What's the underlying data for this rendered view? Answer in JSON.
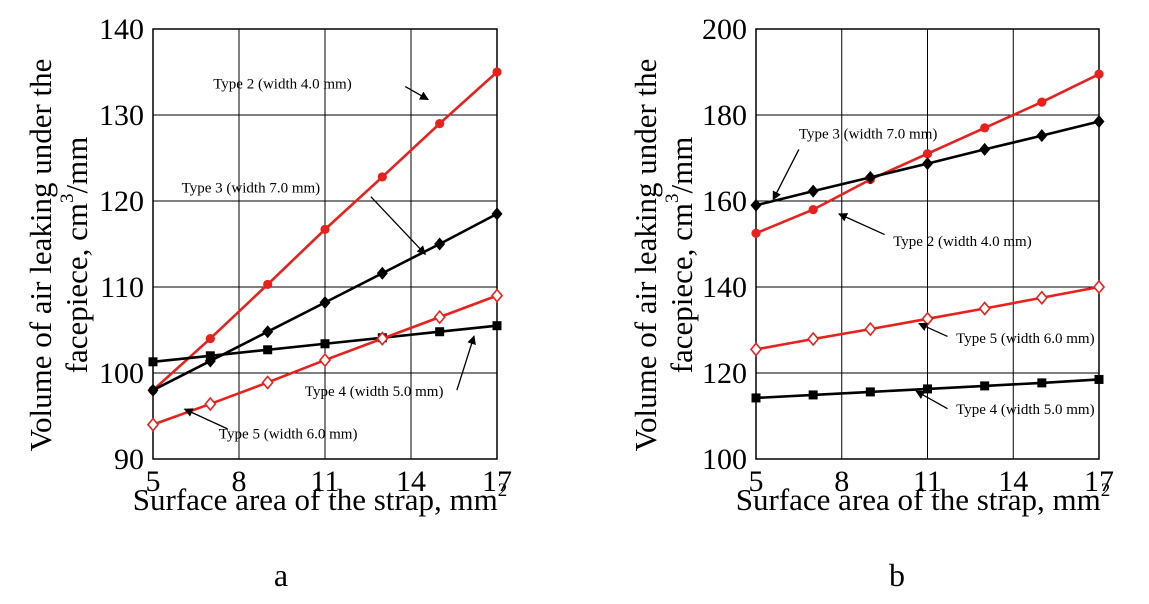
{
  "chart_data": [
    {
      "type": "line",
      "panel_label": "a",
      "xlabel": "Surface area of the strap, mm",
      "xlabel_sup": "2",
      "ylabel_line1": "Volume of air leaking under the",
      "ylabel_line2": "facepiece, cm",
      "ylabel_sup": "3",
      "ylabel_tail": "/mm",
      "xlim": [
        5,
        17
      ],
      "ylim": [
        90,
        140
      ],
      "xticks": [
        5,
        8,
        11,
        14,
        17
      ],
      "yticks": [
        90,
        100,
        110,
        120,
        130,
        140
      ],
      "x": [
        5,
        7,
        9,
        11,
        13,
        15,
        17
      ],
      "grid": true,
      "series": [
        {
          "name": "Type 2 (width 4.0 mm)",
          "color": "#e8211d",
          "marker": "circle",
          "values": [
            98.0,
            104.0,
            110.3,
            116.7,
            122.8,
            129.0,
            135.0
          ]
        },
        {
          "name": "Type 3 (width 7.0 mm)",
          "color": "#000000",
          "marker": "diamond",
          "values": [
            98.0,
            101.4,
            104.8,
            108.2,
            111.6,
            115.0,
            118.5
          ]
        },
        {
          "name": "Type 4 (width 5.0 mm)",
          "color": "#000000",
          "marker": "square",
          "values": [
            101.3,
            102.0,
            102.7,
            103.4,
            104.1,
            104.8,
            105.5
          ]
        },
        {
          "name": "Type 5 (width 6.0 mm)",
          "color": "#e8211d",
          "marker": "open-diamond",
          "values": [
            94.0,
            96.4,
            98.9,
            101.5,
            104.0,
            106.5,
            109.0
          ]
        }
      ],
      "annotations": [
        {
          "text": "Type 2 (width 4.0 mm)",
          "text_at": [
            7.1,
            133.1
          ],
          "arrow_from": [
            13.8,
            133.3
          ],
          "arrow_to": [
            14.6,
            131.8
          ]
        },
        {
          "text": "Type 3 (width 7.0 mm)",
          "text_at": [
            6.0,
            121.0
          ],
          "arrow_from": [
            12.6,
            120.5
          ],
          "arrow_to": [
            14.5,
            113.8
          ]
        },
        {
          "text": "Type 4 (width 5.0 mm)",
          "text_at": [
            10.3,
            97.3
          ],
          "arrow_from": [
            15.6,
            98.0
          ],
          "arrow_to": [
            16.2,
            104.3
          ]
        },
        {
          "text": "Type 5 (width 6.0 mm)",
          "text_at": [
            7.3,
            92.4
          ],
          "arrow_from": [
            7.6,
            93.5
          ],
          "arrow_to": [
            6.1,
            95.8
          ]
        }
      ]
    },
    {
      "type": "line",
      "panel_label": "b",
      "xlabel": "Surface area of the strap, mm",
      "xlabel_sup": "2",
      "ylabel_line1": "Volume of air leaking under the",
      "ylabel_line2": "facepiece, cm",
      "ylabel_sup": "3",
      "ylabel_tail": "/mm",
      "xlim": [
        5,
        17
      ],
      "ylim": [
        100,
        200
      ],
      "xticks": [
        5,
        8,
        11,
        14,
        17
      ],
      "yticks": [
        100,
        120,
        140,
        160,
        180,
        200
      ],
      "x": [
        5,
        7,
        9,
        11,
        13,
        15,
        17
      ],
      "grid": true,
      "series": [
        {
          "name": "Type 2 (width 4.0 mm)",
          "color": "#e8211d",
          "marker": "circle",
          "values": [
            152.5,
            158.0,
            165.0,
            171.0,
            177.0,
            183.0,
            189.5
          ]
        },
        {
          "name": "Type 3 (width 7.0 mm)",
          "color": "#000000",
          "marker": "diamond",
          "values": [
            159.0,
            162.3,
            165.5,
            168.7,
            172.0,
            175.2,
            178.5
          ]
        },
        {
          "name": "Type 4 (width 5.0 mm)",
          "color": "#000000",
          "marker": "square",
          "values": [
            114.2,
            114.9,
            115.6,
            116.3,
            117.0,
            117.7,
            118.5
          ]
        },
        {
          "name": "Type 5 (width 6.0 mm)",
          "color": "#e8211d",
          "marker": "open-diamond",
          "values": [
            125.5,
            127.9,
            130.2,
            132.6,
            135.0,
            137.5,
            140.0
          ]
        }
      ],
      "annotations": [
        {
          "text": "Type 3 (width 7.0 mm)",
          "text_at": [
            6.5,
            174.5
          ],
          "arrow_from": [
            6.5,
            172.0
          ],
          "arrow_to": [
            5.6,
            160.3
          ]
        },
        {
          "text": "Type 2 (width 4.0 mm)",
          "text_at": [
            9.8,
            149.5
          ],
          "arrow_from": [
            9.5,
            152.2
          ],
          "arrow_to": [
            7.9,
            157.0
          ]
        },
        {
          "text": "Type 5 (width 6.0 mm)",
          "text_at": [
            12.0,
            127.0
          ],
          "arrow_from": [
            11.7,
            128.5
          ],
          "arrow_to": [
            10.7,
            131.5
          ]
        },
        {
          "text": "Type 4 (width 5.0 mm)",
          "text_at": [
            12.0,
            110.5
          ],
          "arrow_from": [
            11.7,
            111.7
          ],
          "arrow_to": [
            10.6,
            115.8
          ]
        }
      ]
    }
  ]
}
